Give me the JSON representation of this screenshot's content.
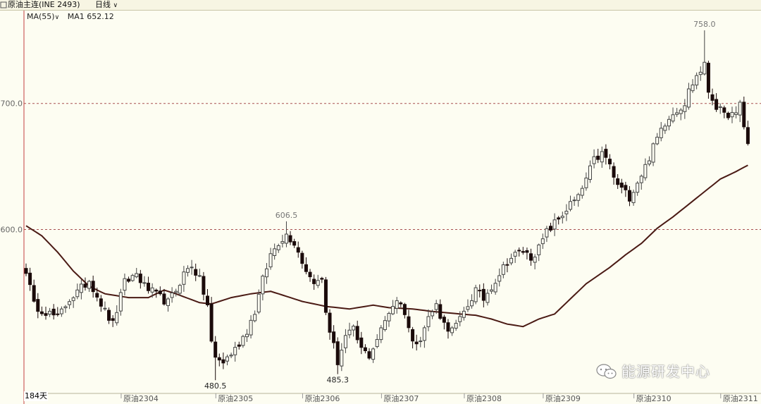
{
  "header": {
    "symbol": "原油主连(INE 2493)",
    "period": "日线",
    "period_dropdown_icon": "chevron-down-icon"
  },
  "indicator": {
    "name": "MA(55)",
    "dropdown_icon": "chevron-down-icon",
    "value_label": "MA1 652.12"
  },
  "footer": {
    "day_count": "184天"
  },
  "watermark": {
    "icon": "wechat-icon",
    "text": "能源研发中心"
  },
  "colors": {
    "background": "#fdfdf2",
    "axis": "#c44040",
    "grid": "#a85050",
    "up": "#444444",
    "down": "#1a0a0a",
    "ma": "#4a1a14"
  },
  "chart_data": {
    "type": "candlestick",
    "ylim": [
      470,
      772
    ],
    "yticks": [
      600,
      700
    ],
    "ytick_labels": [
      "600.0",
      "700.0"
    ],
    "gridlines": [
      600,
      700
    ],
    "xtick_labels": [
      "原油2304",
      "原油2305",
      "原油2306",
      "原油2307",
      "原油2308",
      "原油2309",
      "原油2310",
      "原油2311"
    ],
    "xtick_bars": [
      25,
      49,
      71,
      91,
      112,
      132,
      155,
      177
    ],
    "annotations": [
      {
        "label": "758.0",
        "value": 758.0,
        "bar": 172
      },
      {
        "label": "606.5",
        "value": 606.5,
        "bar": 66
      },
      {
        "label": "485.3",
        "value": 485.3,
        "bar": 79
      },
      {
        "label": "480.5",
        "value": 480.5,
        "bar": 48
      }
    ],
    "bars": 184,
    "anchors": [
      [
        0,
        568
      ],
      [
        2,
        540
      ],
      [
        5,
        535
      ],
      [
        8,
        530
      ],
      [
        11,
        545
      ],
      [
        13,
        550
      ],
      [
        16,
        560
      ],
      [
        18,
        548
      ],
      [
        20,
        535
      ],
      [
        22,
        525
      ],
      [
        25,
        558
      ],
      [
        28,
        565
      ],
      [
        30,
        555
      ],
      [
        33,
        548
      ],
      [
        36,
        542
      ],
      [
        38,
        552
      ],
      [
        40,
        565
      ],
      [
        42,
        572
      ],
      [
        44,
        560
      ],
      [
        46,
        540
      ],
      [
        47,
        510
      ],
      [
        48,
        498
      ],
      [
        50,
        495
      ],
      [
        53,
        505
      ],
      [
        56,
        520
      ],
      [
        58,
        535
      ],
      [
        60,
        560
      ],
      [
        62,
        580
      ],
      [
        64,
        590
      ],
      [
        66,
        596
      ],
      [
        68,
        590
      ],
      [
        70,
        575
      ],
      [
        72,
        562
      ],
      [
        74,
        558
      ],
      [
        75,
        560
      ],
      [
        76,
        535
      ],
      [
        77,
        520
      ],
      [
        79,
        495
      ],
      [
        81,
        515
      ],
      [
        83,
        520
      ],
      [
        85,
        505
      ],
      [
        87,
        500
      ],
      [
        90,
        520
      ],
      [
        92,
        535
      ],
      [
        94,
        545
      ],
      [
        96,
        535
      ],
      [
        98,
        510
      ],
      [
        100,
        515
      ],
      [
        102,
        530
      ],
      [
        104,
        540
      ],
      [
        106,
        525
      ],
      [
        108,
        520
      ],
      [
        110,
        528
      ],
      [
        112,
        540
      ],
      [
        114,
        552
      ],
      [
        116,
        545
      ],
      [
        118,
        555
      ],
      [
        120,
        565
      ],
      [
        122,
        575
      ],
      [
        124,
        580
      ],
      [
        126,
        583
      ],
      [
        128,
        578
      ],
      [
        130,
        585
      ],
      [
        132,
        598
      ],
      [
        134,
        605
      ],
      [
        136,
        612
      ],
      [
        138,
        620
      ],
      [
        140,
        625
      ],
      [
        142,
        640
      ],
      [
        144,
        655
      ],
      [
        146,
        660
      ],
      [
        148,
        652
      ],
      [
        149,
        640
      ],
      [
        151,
        632
      ],
      [
        153,
        626
      ],
      [
        155,
        638
      ],
      [
        157,
        650
      ],
      [
        159,
        665
      ],
      [
        161,
        680
      ],
      [
        163,
        690
      ],
      [
        165,
        695
      ],
      [
        167,
        700
      ],
      [
        168,
        710
      ],
      [
        170,
        722
      ],
      [
        172,
        730
      ],
      [
        173,
        710
      ],
      [
        175,
        698
      ],
      [
        177,
        690
      ],
      [
        178,
        692
      ],
      [
        180,
        690
      ],
      [
        181,
        700
      ],
      [
        182,
        682
      ],
      [
        183,
        668
      ],
      [
        184,
        658
      ]
    ],
    "ma_anchors": [
      [
        0,
        603
      ],
      [
        4,
        595
      ],
      [
        8,
        582
      ],
      [
        12,
        567
      ],
      [
        16,
        555
      ],
      [
        20,
        549
      ],
      [
        26,
        546
      ],
      [
        31,
        546
      ],
      [
        35,
        552
      ],
      [
        38,
        549
      ],
      [
        44,
        542
      ],
      [
        47,
        541
      ],
      [
        52,
        546
      ],
      [
        57,
        549
      ],
      [
        62,
        551
      ],
      [
        65,
        548
      ],
      [
        70,
        543
      ],
      [
        76,
        539
      ],
      [
        82,
        537
      ],
      [
        88,
        540
      ],
      [
        92,
        538
      ],
      [
        98,
        537
      ],
      [
        103,
        535
      ],
      [
        110,
        533
      ],
      [
        114,
        532
      ],
      [
        118,
        529
      ],
      [
        122,
        525
      ],
      [
        126,
        523
      ],
      [
        130,
        529
      ],
      [
        134,
        533
      ],
      [
        138,
        545
      ],
      [
        142,
        557
      ],
      [
        148,
        570
      ],
      [
        152,
        580
      ],
      [
        156,
        589
      ],
      [
        160,
        601
      ],
      [
        164,
        610
      ],
      [
        168,
        620
      ],
      [
        172,
        630
      ],
      [
        176,
        640
      ],
      [
        180,
        646
      ],
      [
        183,
        651
      ]
    ]
  }
}
